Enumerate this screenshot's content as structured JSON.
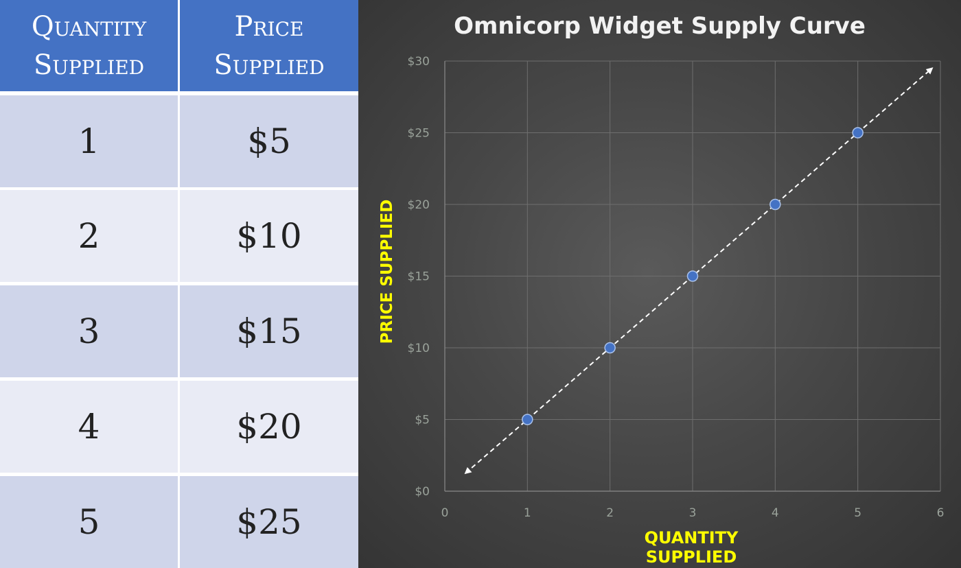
{
  "table": {
    "header_quantity": [
      "Quantity",
      "Supplied"
    ],
    "header_price": [
      "Price",
      "Supplied"
    ],
    "rows": [
      {
        "quantity": "1",
        "price": "$5"
      },
      {
        "quantity": "2",
        "price": "$10"
      },
      {
        "quantity": "3",
        "price": "$15"
      },
      {
        "quantity": "4",
        "price": "$20"
      },
      {
        "quantity": "5",
        "price": "$25"
      }
    ]
  },
  "colors": {
    "header_bg": "#4472c4",
    "row_odd": "#cfd5ea",
    "row_even": "#e9ebf5",
    "point": "#4472c4",
    "axis_title": "#ffff00"
  },
  "chart_data": {
    "type": "scatter",
    "title": "Omnicorp Widget Supply Curve",
    "xlabel": "QUANTITY SUPPLIED",
    "ylabel": "PRICE SUPPLIED",
    "xlim": [
      0,
      6
    ],
    "ylim": [
      0,
      30
    ],
    "x_ticks": [
      "0",
      "1",
      "2",
      "3",
      "4",
      "5",
      "6"
    ],
    "y_ticks": [
      "$0",
      "$5",
      "$10",
      "$15",
      "$20",
      "$25",
      "$30"
    ],
    "grid": true,
    "series": [
      {
        "x": [
          1,
          2,
          3,
          4,
          5
        ],
        "y": [
          5,
          10,
          15,
          20,
          25
        ]
      }
    ],
    "trendline": {
      "style": "dashed",
      "arrows": "both",
      "from": [
        0.25,
        1.25
      ],
      "to": [
        5.9,
        29.5
      ]
    }
  }
}
